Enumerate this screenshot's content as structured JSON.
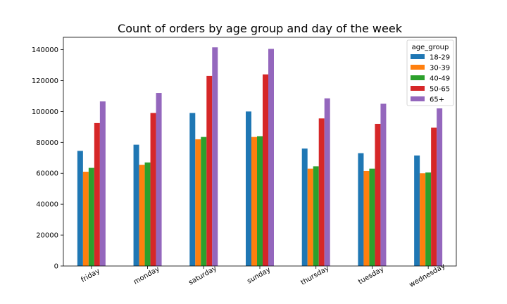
{
  "chart_data": {
    "type": "bar",
    "title": "Count of orders by age group and day of the week",
    "xlabel": "",
    "ylabel": "",
    "categories": [
      "friday",
      "monday",
      "saturday",
      "sunday",
      "thursday",
      "tuesday",
      "wednesday"
    ],
    "ylim": [
      0,
      148000
    ],
    "yticks": [
      0,
      20000,
      40000,
      60000,
      80000,
      100000,
      120000,
      140000
    ],
    "grid": false,
    "legend": {
      "title": "age_group",
      "placement": "top-right"
    },
    "series": [
      {
        "name": "18-29",
        "color": "#1f77b4",
        "values": [
          74500,
          78500,
          99000,
          100000,
          76000,
          73000,
          71500
        ]
      },
      {
        "name": "30-39",
        "color": "#ff7f0e",
        "values": [
          61000,
          65500,
          82000,
          83500,
          63000,
          61500,
          60000
        ]
      },
      {
        "name": "40-49",
        "color": "#2ca02c",
        "values": [
          63500,
          67000,
          83500,
          84000,
          64500,
          63000,
          60500
        ]
      },
      {
        "name": "50-65",
        "color": "#d62728",
        "values": [
          92500,
          99000,
          123000,
          124000,
          95500,
          92000,
          89500
        ]
      },
      {
        "name": "65+",
        "color": "#9467bd",
        "values": [
          106500,
          112000,
          141500,
          140500,
          108500,
          105000,
          102000
        ]
      }
    ]
  }
}
